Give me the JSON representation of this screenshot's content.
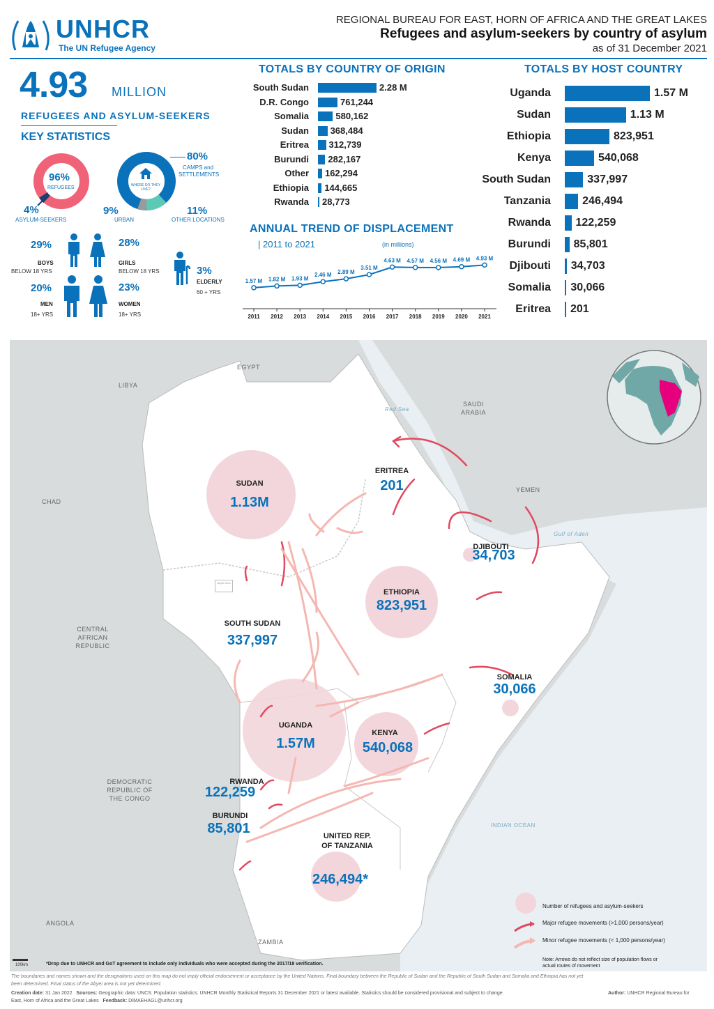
{
  "header": {
    "org": "UNHCR",
    "org_sub": "The UN Refugee Agency",
    "bureau": "REGIONAL BUREAU FOR EAST, HORN OF AFRICA AND THE GREAT LAKES",
    "title": "Refugees and asylum-seekers by country of asylum",
    "date": "as of 31 December 2021"
  },
  "summary": {
    "total": "4.93",
    "unit": "MILLION",
    "label": "REFUGEES AND ASYLUM-SEEKERS"
  },
  "key_stats": {
    "title": "KEY STATISTICS",
    "donut1": {
      "main_pct": "96%",
      "main_label": "REFUGEES",
      "minor_pct": "4%",
      "minor_label": "ASYLUM-SEEKERS"
    },
    "donut2": {
      "center_label": "WHERE DO THEY LIVE?",
      "camps_pct": "80%",
      "camps_label_1": "CAMPS and",
      "camps_label_2": "SETTLEMENTS",
      "urban_pct": "9%",
      "urban_label": "URBAN",
      "other_pct": "11%",
      "other_label": "OTHER LOCATIONS"
    },
    "boys": {
      "pct": "29%",
      "label": "BOYS",
      "sub": "BELOW 18 YRS"
    },
    "girls": {
      "pct": "28%",
      "label": "GIRLS",
      "sub": "BELOW 18 YRS"
    },
    "men": {
      "pct": "20%",
      "label": "MEN",
      "sub": "18+ YRS"
    },
    "women": {
      "pct": "23%",
      "label": "WOMEN",
      "sub": "18+ YRS"
    },
    "elderly": {
      "pct": "3%",
      "label": "ELDERLY",
      "sub": "60 + YRS"
    }
  },
  "origin": {
    "title": "TOTALS BY COUNTRY OF ORIGIN",
    "rows": [
      {
        "name": "South Sudan",
        "label": "2.28 M",
        "value": 2280000
      },
      {
        "name": "D.R. Congo",
        "label": "761,244",
        "value": 761244
      },
      {
        "name": "Somalia",
        "label": "580,162",
        "value": 580162
      },
      {
        "name": "Sudan",
        "label": "368,484",
        "value": 368484
      },
      {
        "name": "Eritrea",
        "label": "312,739",
        "value": 312739
      },
      {
        "name": "Burundi",
        "label": "282,167",
        "value": 282167
      },
      {
        "name": "Other",
        "label": "162,294",
        "value": 162294
      },
      {
        "name": "Ethiopia",
        "label": "144,665",
        "value": 144665
      },
      {
        "name": "Rwanda",
        "label": "28,773",
        "value": 28773
      }
    ]
  },
  "host": {
    "title": "TOTALS BY HOST COUNTRY",
    "rows": [
      {
        "name": "Uganda",
        "label": "1.57 M",
        "value": 1570000
      },
      {
        "name": "Sudan",
        "label": "1.13 M",
        "value": 1130000
      },
      {
        "name": "Ethiopia",
        "label": "823,951",
        "value": 823951
      },
      {
        "name": "Kenya",
        "label": "540,068",
        "value": 540068
      },
      {
        "name": "South Sudan",
        "label": "337,997",
        "value": 337997
      },
      {
        "name": "Tanzania",
        "label": "246,494",
        "value": 246494
      },
      {
        "name": "Rwanda",
        "label": "122,259",
        "value": 122259
      },
      {
        "name": "Burundi",
        "label": "85,801",
        "value": 85801
      },
      {
        "name": "Djibouti",
        "label": "34,703",
        "value": 34703
      },
      {
        "name": "Somalia",
        "label": "30,066",
        "value": 30066
      },
      {
        "name": "Eritrea",
        "label": "201",
        "value": 201
      }
    ]
  },
  "chart_data": {
    "type": "line",
    "title": "ANNUAL TREND OF DISPLACEMENT",
    "subtitle": "| 2011 to 2021",
    "unit_note": "(in millions)",
    "x": [
      "2011",
      "2012",
      "2013",
      "2014",
      "2015",
      "2016",
      "2017",
      "2018",
      "2019",
      "2020",
      "2021"
    ],
    "values": [
      1.57,
      1.82,
      1.93,
      2.46,
      2.89,
      3.51,
      4.63,
      4.57,
      4.56,
      4.69,
      4.93
    ],
    "labels": [
      "1.57 M",
      "1.82 M",
      "1.93 M",
      "2.46 M",
      "2.89 M",
      "3.51 M",
      "4.63 M",
      "4.57 M",
      "4.56 M",
      "4.69 M",
      "4.93 M"
    ],
    "ylim": [
      0,
      5
    ],
    "color": "#0a72ba"
  },
  "map": {
    "other_countries": [
      "EGYPT",
      "LIBYA",
      "CHAD",
      "SAUDI ARABIA",
      "YEMEN",
      "CENTRAL AFRICAN REPUBLIC",
      "DEMOCRATIC REPUBLIC OF THE CONGO",
      "ANGOLA",
      "ZAMBIA"
    ],
    "water": [
      "Red Sea",
      "Gulf of Aden",
      "INDIAN OCEAN"
    ],
    "abyei": "Abyei Area",
    "hosts": [
      {
        "name": "SUDAN",
        "value": "1.13M"
      },
      {
        "name": "ERITREA",
        "value": "201"
      },
      {
        "name": "DJIBOUTI",
        "value": "34,703"
      },
      {
        "name": "ETHIOPIA",
        "value": "823,951"
      },
      {
        "name": "SOUTH SUDAN",
        "value": "337,997"
      },
      {
        "name": "SOMALIA",
        "value": "30,066"
      },
      {
        "name": "UGANDA",
        "value": "1.57M"
      },
      {
        "name": "KENYA",
        "value": "540,068"
      },
      {
        "name": "RWANDA",
        "value": "122,259"
      },
      {
        "name": "BURUNDI",
        "value": "85,801"
      },
      {
        "name": "UNITED REP.",
        "name2": "OF TANZANIA",
        "value": "246,494*"
      }
    ],
    "legend": {
      "bubble": "Number of refugees and asylum-seekers",
      "major": "Major refugee movements (>1,000 persons/year)",
      "minor": "Minor refugee movements (< 1,000 persons/year)",
      "note_1": "Note: Arrows do not reflect size of population flows or",
      "note_2": "actual routes of movement"
    },
    "scale": "100km",
    "tanzania_note": "*Drop due to UNHCR and GoT agreement  to  include only individuals who were accepted during the 2017/18 verification.",
    "colors": {
      "land_host": "#ffffff",
      "land_other": "#d8dcdc",
      "water": "#e9eff2",
      "bubble": "#f2d6dc",
      "arrow": "#e0495f",
      "arrow_minor": "#f5b7b1",
      "highlight": "#e6007e"
    }
  },
  "footer": {
    "disclaimer_1": "The boundaries and names shown and the designations used on this map do not imply official endorsement or acceptance by the United Nations. Final boundary between the Republic of Sudan and the Republic of South Sudan and Somalia and Ethiopia has not yet",
    "disclaimer_2": "been determined. Final status of the Abyei area is not yet determined.",
    "creation_label": "Creation date:",
    "creation": "31 Jan 2022",
    "sources_label": "Sources:",
    "sources": "Geographic data: UNCS. Population statistics: UNHCR Monthly Statistical Reports 31 December 2021 or latest available. Statistics should be considered provisional and subject to change.",
    "author_label": "Author:",
    "author": "UNHCR Regional Bureau for",
    "author_2": "East, Horn of Africa and the Great Lakes",
    "feedback_label": "Feedback:",
    "feedback": "DIMAEHAGL@unhcr.org"
  }
}
